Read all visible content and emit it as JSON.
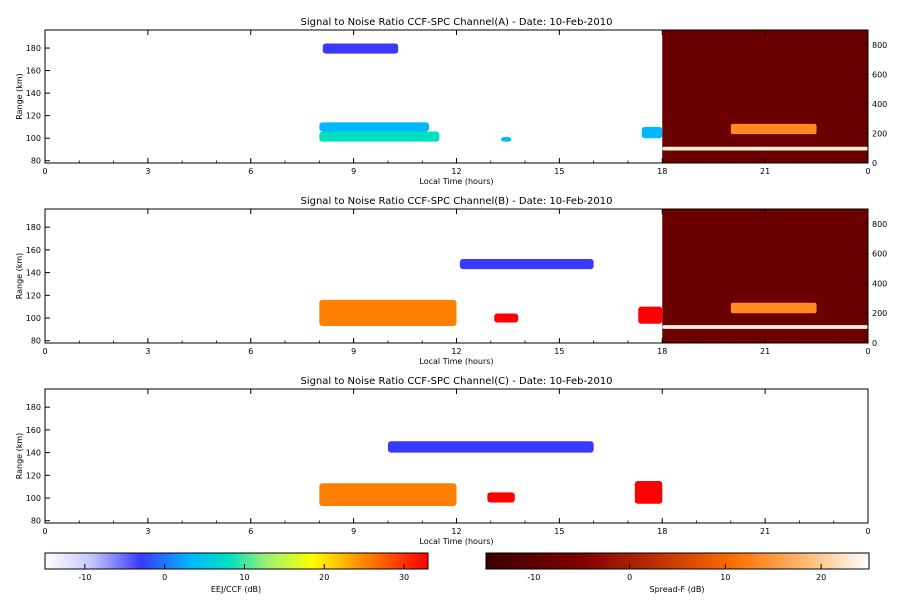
{
  "chart_data": [
    {
      "type": "heatmap",
      "title": "Signal to Noise Ratio CCF-SPC Channel(A) - Date: 10-Feb-2010",
      "xlabel": "Local Time (hours)",
      "ylabel": "Range (km)",
      "xlim": [
        0,
        24
      ],
      "xticks": [
        "0",
        "3",
        "6",
        "9",
        "12",
        "15",
        "18",
        "21",
        "0"
      ],
      "ylim": [
        78,
        196
      ],
      "yticks": [
        "80",
        "100",
        "120",
        "140",
        "160",
        "180"
      ],
      "right_ylim": [
        0,
        900
      ],
      "right_yticks": [
        "0",
        "200",
        "400",
        "600",
        "800"
      ],
      "overlay": {
        "label": "Spread-F",
        "x_start": 18,
        "x_end": 24,
        "background": "#6b0000"
      },
      "features": [
        {
          "x0": 8.1,
          "x1": 10.3,
          "y0": 175,
          "y1": 184,
          "snr": -8
        },
        {
          "x0": 8.0,
          "x1": 11.2,
          "y0": 106,
          "y1": 114,
          "snr": -3
        },
        {
          "x0": 8.0,
          "x1": 11.5,
          "y0": 97,
          "y1": 106,
          "snr": 4
        },
        {
          "x0": 13.3,
          "x1": 13.6,
          "y0": 97,
          "y1": 101,
          "snr": -2
        },
        {
          "x0": 17.4,
          "x1": 18.0,
          "y0": 100,
          "y1": 110,
          "snr": -2
        }
      ],
      "spreadf_features": [
        {
          "x0": 20.0,
          "x1": 22.5,
          "h0": 195,
          "h1": 265,
          "snr": 12
        },
        {
          "x0": 18.0,
          "x1": 24.0,
          "h0": 85,
          "h1": 110,
          "snr": 22
        }
      ]
    },
    {
      "type": "heatmap",
      "title": "Signal to Noise Ratio CCF-SPC Channel(B) - Date: 10-Feb-2010",
      "xlabel": "Local Time (hours)",
      "ylabel": "Range (km)",
      "xlim": [
        0,
        24
      ],
      "xticks": [
        "0",
        "3",
        "6",
        "9",
        "12",
        "15",
        "18",
        "21",
        "0"
      ],
      "ylim": [
        78,
        196
      ],
      "yticks": [
        "80",
        "100",
        "120",
        "140",
        "160",
        "180"
      ],
      "right_ylim": [
        0,
        900
      ],
      "right_yticks": [
        "0",
        "200",
        "400",
        "600",
        "800"
      ],
      "overlay": {
        "label": "Spread-F",
        "x_start": 18,
        "x_end": 24,
        "background": "#6b0000"
      },
      "features": [
        {
          "x0": 12.1,
          "x1": 16.0,
          "y0": 143,
          "y1": 152,
          "snr": -5
        },
        {
          "x0": 8.0,
          "x1": 12.0,
          "y0": 93,
          "y1": 116,
          "snr": 20
        },
        {
          "x0": 13.1,
          "x1": 13.8,
          "y0": 96,
          "y1": 104,
          "snr": 28
        },
        {
          "x0": 17.3,
          "x1": 18.0,
          "y0": 95,
          "y1": 110,
          "snr": 26
        }
      ],
      "spreadf_features": [
        {
          "x0": 20.0,
          "x1": 22.5,
          "h0": 200,
          "h1": 270,
          "snr": 12
        },
        {
          "x0": 18.0,
          "x1": 24.0,
          "h0": 95,
          "h1": 120,
          "snr": 22
        }
      ]
    },
    {
      "type": "heatmap",
      "title": "Signal to Noise Ratio CCF-SPC Channel(C) - Date: 10-Feb-2010",
      "xlabel": "Local Time (hours)",
      "ylabel": "Range (km)",
      "xlim": [
        0,
        24
      ],
      "xticks": [
        "0",
        "3",
        "6",
        "9",
        "12",
        "15",
        "18",
        "21",
        "0"
      ],
      "ylim": [
        78,
        196
      ],
      "yticks": [
        "80",
        "100",
        "120",
        "140",
        "160",
        "180"
      ],
      "features": [
        {
          "x0": 10.0,
          "x1": 16.0,
          "y0": 140,
          "y1": 150,
          "snr": -5
        },
        {
          "x0": 8.0,
          "x1": 12.0,
          "y0": 93,
          "y1": 113,
          "snr": 22
        },
        {
          "x0": 12.9,
          "x1": 13.7,
          "y0": 96,
          "y1": 105,
          "snr": 28
        },
        {
          "x0": 17.2,
          "x1": 18.0,
          "y0": 95,
          "y1": 115,
          "snr": 26
        }
      ]
    }
  ],
  "colorbars": [
    {
      "label": "EEJ/CCF (dB)",
      "ticks": [
        "-10",
        "0",
        "10",
        "20",
        "30"
      ],
      "range": [
        -15,
        33
      ]
    },
    {
      "label": "Spread-F (dB)",
      "ticks": [
        "-10",
        "0",
        "10",
        "20"
      ],
      "range": [
        -15,
        25
      ]
    }
  ]
}
